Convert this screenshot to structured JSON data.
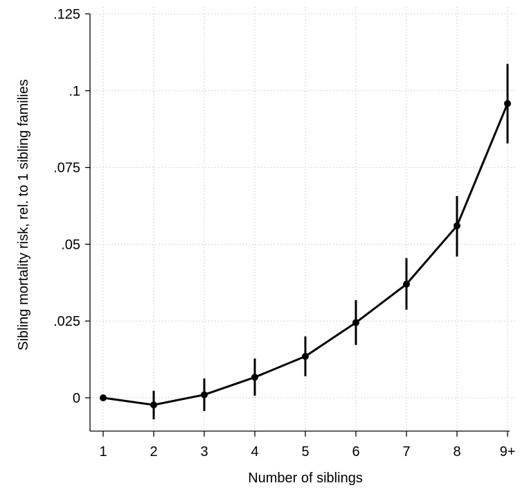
{
  "chart_data": {
    "type": "line",
    "title": "",
    "xlabel": "Number of siblings",
    "ylabel": "Sibling mortality risk, rel. to 1 sibling families",
    "categories": [
      "1",
      "2",
      "3",
      "4",
      "5",
      "6",
      "7",
      "8",
      "9+"
    ],
    "series": [
      {
        "values": [
          0.0,
          -0.0023,
          0.001,
          0.0067,
          0.0135,
          0.0245,
          0.037,
          0.056,
          0.0958
        ],
        "ci_low": [
          0.0,
          -0.007,
          -0.0043,
          0.0007,
          0.007,
          0.0172,
          0.0287,
          0.046,
          0.0828
        ],
        "ci_high": [
          0.0,
          0.0023,
          0.0063,
          0.0128,
          0.02,
          0.0318,
          0.0455,
          0.0657,
          0.1087
        ]
      }
    ],
    "yticks": [
      0,
      0.025,
      0.05,
      0.075,
      0.1,
      0.125
    ],
    "ytick_labels": [
      "0",
      ".025",
      ".05",
      ".075",
      ".1",
      ".125"
    ],
    "ylim": [
      -0.01,
      0.125
    ],
    "grid": true,
    "legend": "none",
    "colors": {
      "line": "#000000",
      "grid": "#c8c8c8"
    }
  }
}
